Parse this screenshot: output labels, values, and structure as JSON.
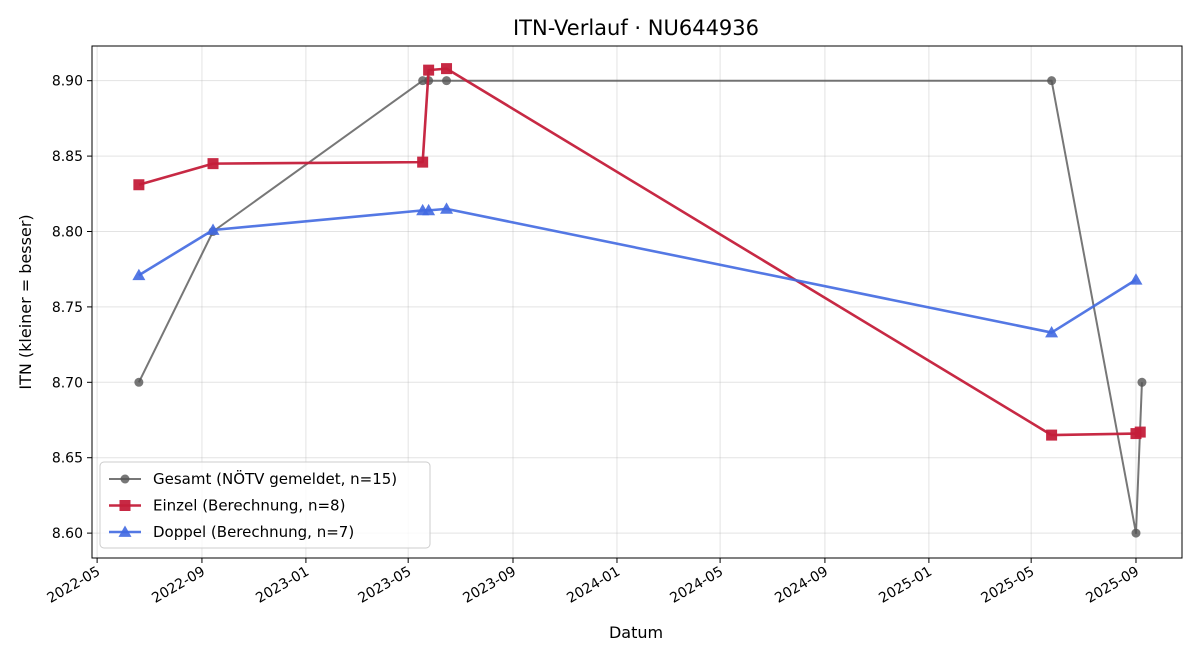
{
  "chart_data": {
    "type": "line",
    "title": "ITN-Verlauf · NU644936",
    "xlabel": "Datum",
    "ylabel": "ITN  (kleiner = besser)",
    "x_axis_type": "date",
    "xlim": [
      "2022-04-25",
      "2025-10-25"
    ],
    "ylim": [
      8.5835,
      8.923
    ],
    "xticks": [
      "2022-05-01",
      "2022-09-01",
      "2023-01-01",
      "2023-05-01",
      "2023-09-01",
      "2024-01-01",
      "2024-05-01",
      "2024-09-01",
      "2025-01-01",
      "2025-05-01",
      "2025-09-01"
    ],
    "xtick_labels": [
      "2022-05",
      "2022-09",
      "2023-01",
      "2023-05",
      "2023-09",
      "2024-01",
      "2024-05",
      "2024-09",
      "2025-01",
      "2025-05",
      "2025-09"
    ],
    "yticks": [
      8.6,
      8.65,
      8.7,
      8.75,
      8.8,
      8.85,
      8.9
    ],
    "ytick_labels": [
      "8.60",
      "8.65",
      "8.70",
      "8.75",
      "8.80",
      "8.85",
      "8.90"
    ],
    "grid": true,
    "legend_position": "lower-left",
    "series": [
      {
        "name": "Gesamt (NÖTV gemeldet, n=15)",
        "color": "#555555",
        "marker": "circle",
        "points": [
          {
            "x": "2022-06-19",
            "y": 8.7
          },
          {
            "x": "2022-09-14",
            "y": 8.8
          },
          {
            "x": "2023-05-18",
            "y": 8.9
          },
          {
            "x": "2023-05-25",
            "y": 8.9
          },
          {
            "x": "2023-06-15",
            "y": 8.9
          },
          {
            "x": "2025-05-25",
            "y": 8.9
          },
          {
            "x": "2025-09-01",
            "y": 8.6
          },
          {
            "x": "2025-09-08",
            "y": 8.7
          }
        ]
      },
      {
        "name": "Einzel (Berechnung, n=8)",
        "color": "#c41e3a",
        "marker": "square",
        "points": [
          {
            "x": "2022-06-19",
            "y": 8.831
          },
          {
            "x": "2022-09-14",
            "y": 8.845
          },
          {
            "x": "2023-05-18",
            "y": 8.846
          },
          {
            "x": "2023-05-25",
            "y": 8.907
          },
          {
            "x": "2023-06-15",
            "y": 8.908
          },
          {
            "x": "2025-05-25",
            "y": 8.665
          },
          {
            "x": "2025-09-01",
            "y": 8.666
          },
          {
            "x": "2025-09-06",
            "y": 8.667
          }
        ]
      },
      {
        "name": "Doppel (Berechnung, n=7)",
        "color": "#4169e1",
        "marker": "triangle",
        "points": [
          {
            "x": "2022-06-19",
            "y": 8.771
          },
          {
            "x": "2022-09-14",
            "y": 8.801
          },
          {
            "x": "2023-05-18",
            "y": 8.814
          },
          {
            "x": "2023-05-25",
            "y": 8.814
          },
          {
            "x": "2023-06-15",
            "y": 8.815
          },
          {
            "x": "2025-05-25",
            "y": 8.733
          },
          {
            "x": "2025-09-01",
            "y": 8.768
          }
        ]
      }
    ]
  }
}
